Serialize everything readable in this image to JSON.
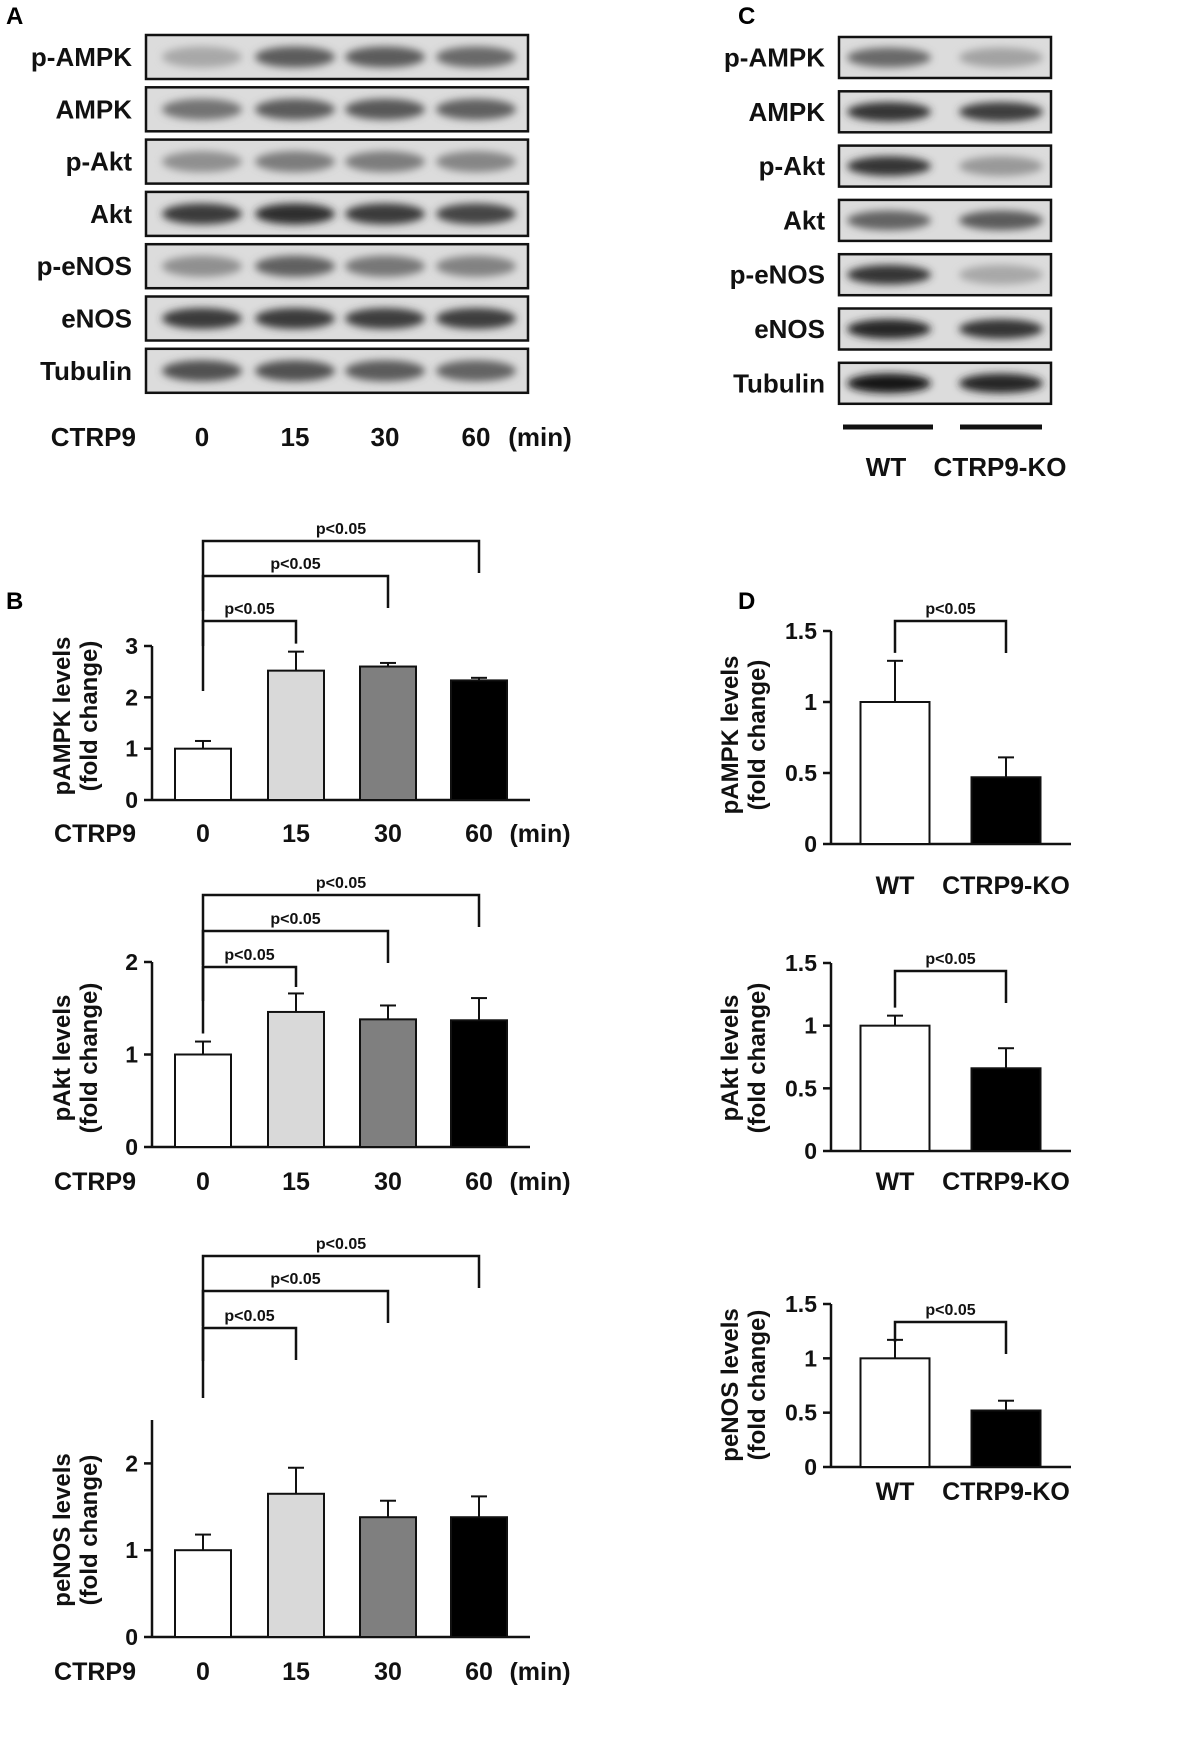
{
  "panel_labels": {
    "a": "A",
    "b": "B",
    "c": "C",
    "d": "D"
  },
  "blots": {
    "a": {
      "bands": [
        {
          "label": "p-AMPK",
          "intensity": [
            0.22,
            0.62,
            0.62,
            0.55
          ]
        },
        {
          "label": "AMPK",
          "intensity": [
            0.5,
            0.62,
            0.64,
            0.6
          ]
        },
        {
          "label": "p-Akt",
          "intensity": [
            0.35,
            0.45,
            0.45,
            0.4
          ]
        },
        {
          "label": "Akt",
          "intensity": [
            0.8,
            0.86,
            0.8,
            0.74
          ]
        },
        {
          "label": "p-eNOS",
          "intensity": [
            0.35,
            0.6,
            0.48,
            0.42
          ]
        },
        {
          "label": "eNOS",
          "intensity": [
            0.8,
            0.8,
            0.78,
            0.78
          ]
        },
        {
          "label": "Tubulin",
          "intensity": [
            0.68,
            0.68,
            0.62,
            0.58
          ]
        }
      ],
      "condition_label": "CTRP9",
      "lanes": [
        "0",
        "15",
        "30",
        "60"
      ],
      "unit": "(min)"
    },
    "c": {
      "bands": [
        {
          "label": "p-AMPK",
          "intensity": [
            0.55,
            0.25
          ]
        },
        {
          "label": "AMPK",
          "intensity": [
            0.82,
            0.78
          ]
        },
        {
          "label": "p-Akt",
          "intensity": [
            0.82,
            0.3
          ]
        },
        {
          "label": "Akt",
          "intensity": [
            0.58,
            0.62
          ]
        },
        {
          "label": "p-eNOS",
          "intensity": [
            0.82,
            0.22
          ]
        },
        {
          "label": "eNOS",
          "intensity": [
            0.9,
            0.82
          ]
        },
        {
          "label": "Tubulin",
          "intensity": [
            1.0,
            0.9
          ]
        }
      ],
      "groups": [
        "WT",
        "CTRP9-KO"
      ]
    }
  },
  "chart_data": [
    {
      "type": "bar",
      "panel": "B",
      "ylabel": [
        "pAMPK levels",
        "(fold change)"
      ],
      "x_prefix": "CTRP9",
      "x_unit": "(min)",
      "categories": [
        "0",
        "15",
        "30",
        "60"
      ],
      "values": [
        1.0,
        2.52,
        2.6,
        2.33
      ],
      "errors": [
        0.15,
        0.37,
        0.07,
        0.05
      ],
      "colors": [
        "#ffffff",
        "#d9d9d9",
        "#7f7f7f",
        "#000000"
      ],
      "ylim": [
        0,
        3
      ],
      "yticks": [
        "0",
        "1",
        "2",
        "3"
      ],
      "significance": [
        {
          "from": "0",
          "to": "15",
          "label": "p<0.05"
        },
        {
          "from": "0",
          "to": "30",
          "label": "p<0.05"
        },
        {
          "from": "0",
          "to": "60",
          "label": "p<0.05"
        }
      ]
    },
    {
      "type": "bar",
      "panel": "B",
      "ylabel": [
        "pAkt levels",
        "(fold change)"
      ],
      "x_prefix": "CTRP9",
      "x_unit": "(min)",
      "categories": [
        "0",
        "15",
        "30",
        "60"
      ],
      "values": [
        1.0,
        1.46,
        1.38,
        1.37
      ],
      "errors": [
        0.14,
        0.2,
        0.15,
        0.24
      ],
      "colors": [
        "#ffffff",
        "#d9d9d9",
        "#7f7f7f",
        "#000000"
      ],
      "ylim": [
        0,
        2
      ],
      "yticks": [
        "0",
        "1",
        "2"
      ],
      "significance": [
        {
          "from": "0",
          "to": "15",
          "label": "p<0.05"
        },
        {
          "from": "0",
          "to": "30",
          "label": "p<0.05"
        },
        {
          "from": "0",
          "to": "60",
          "label": "p<0.05"
        }
      ]
    },
    {
      "type": "bar",
      "panel": "B",
      "ylabel": [
        "peNOS levels",
        "(fold change)"
      ],
      "x_prefix": "CTRP9",
      "x_unit": "(min)",
      "categories": [
        "0",
        "15",
        "30",
        "60"
      ],
      "values": [
        1.0,
        1.65,
        1.38,
        1.38
      ],
      "errors": [
        0.18,
        0.3,
        0.19,
        0.24
      ],
      "colors": [
        "#ffffff",
        "#d9d9d9",
        "#7f7f7f",
        "#000000"
      ],
      "ylim": [
        0,
        2.5
      ],
      "yticks": [
        "0",
        "1",
        "2"
      ],
      "significance": [
        {
          "from": "0",
          "to": "15",
          "label": "p<0.05"
        },
        {
          "from": "0",
          "to": "30",
          "label": "p<0.05"
        },
        {
          "from": "0",
          "to": "60",
          "label": "p<0.05"
        }
      ]
    },
    {
      "type": "bar",
      "panel": "D",
      "ylabel": [
        "pAMPK levels",
        "(fold change)"
      ],
      "categories": [
        "WT",
        "CTRP9-KO"
      ],
      "values": [
        1.0,
        0.47
      ],
      "errors": [
        0.29,
        0.14
      ],
      "colors": [
        "#ffffff",
        "#000000"
      ],
      "ylim": [
        0,
        1.5
      ],
      "yticks": [
        "0",
        "0.5",
        "1",
        "1.5"
      ],
      "significance": [
        {
          "from": "WT",
          "to": "CTRP9-KO",
          "label": "p<0.05"
        }
      ]
    },
    {
      "type": "bar",
      "panel": "D",
      "ylabel": [
        "pAkt levels",
        "(fold change)"
      ],
      "categories": [
        "WT",
        "CTRP9-KO"
      ],
      "values": [
        1.0,
        0.66
      ],
      "errors": [
        0.08,
        0.16
      ],
      "colors": [
        "#ffffff",
        "#000000"
      ],
      "ylim": [
        0,
        1.5
      ],
      "yticks": [
        "0",
        "0.5",
        "1",
        "1.5"
      ],
      "significance": [
        {
          "from": "WT",
          "to": "CTRP9-KO",
          "label": "p<0.05"
        }
      ]
    },
    {
      "type": "bar",
      "panel": "D",
      "ylabel": [
        "peNOS levels",
        "(fold change)"
      ],
      "categories": [
        "WT",
        "CTRP9-KO"
      ],
      "values": [
        1.0,
        0.52
      ],
      "errors": [
        0.17,
        0.09
      ],
      "colors": [
        "#ffffff",
        "#000000"
      ],
      "ylim": [
        0,
        1.5
      ],
      "yticks": [
        "0",
        "0.5",
        "1",
        "1.5"
      ],
      "significance": [
        {
          "from": "WT",
          "to": "CTRP9-KO",
          "label": "p<0.05"
        }
      ]
    }
  ]
}
